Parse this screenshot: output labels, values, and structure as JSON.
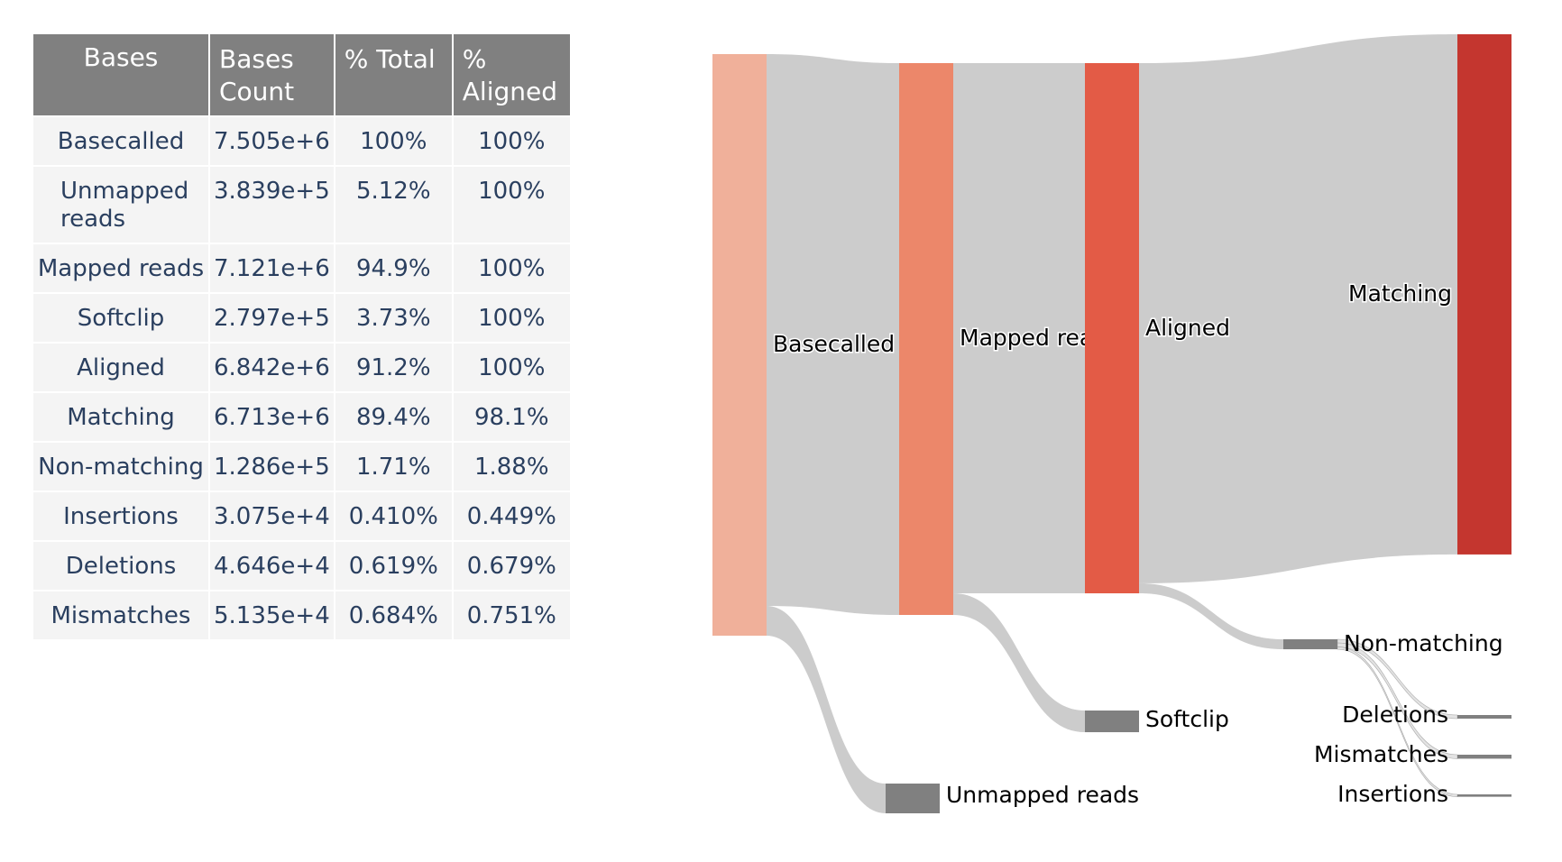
{
  "table": {
    "headers": [
      "Bases",
      "Bases Count",
      "% Total",
      "% Aligned"
    ],
    "rows": [
      [
        "Basecalled",
        "7.505e+6",
        "100%",
        "100%"
      ],
      [
        "Unmapped reads",
        "3.839e+5",
        "5.12%",
        "100%"
      ],
      [
        "Mapped reads",
        "7.121e+6",
        "94.9%",
        "100%"
      ],
      [
        "Softclip",
        "2.797e+5",
        "3.73%",
        "100%"
      ],
      [
        "Aligned",
        "6.842e+6",
        "91.2%",
        "100%"
      ],
      [
        "Matching",
        "6.713e+6",
        "89.4%",
        "98.1%"
      ],
      [
        "Non-matching",
        "1.286e+5",
        "1.71%",
        "1.88%"
      ],
      [
        "Insertions",
        "3.075e+4",
        "0.410%",
        "0.449%"
      ],
      [
        "Deletions",
        "4.646e+4",
        "0.619%",
        "0.679%"
      ],
      [
        "Mismatches",
        "5.135e+4",
        "0.684%",
        "0.751%"
      ]
    ],
    "colors": {
      "header_bg": "#808080",
      "header_text": "#ffffff",
      "cell_bg": "#f4f4f4",
      "cell_text": "#2a3f5f"
    }
  },
  "chart_data": {
    "type": "sankey",
    "nodes": [
      {
        "id": "basecalled",
        "label": "Basecalled",
        "value": 7505000,
        "color": "#f0b09a"
      },
      {
        "id": "mapped",
        "label": "Mapped reads",
        "value": 7121000,
        "color": "#ec876a"
      },
      {
        "id": "unmapped",
        "label": "Unmapped reads",
        "value": 383900,
        "color": "#808080"
      },
      {
        "id": "aligned",
        "label": "Aligned",
        "value": 6842000,
        "color": "#e35b46"
      },
      {
        "id": "softclip",
        "label": "Softclip",
        "value": 279700,
        "color": "#808080"
      },
      {
        "id": "matching",
        "label": "Matching",
        "value": 6713000,
        "color": "#c4362f"
      },
      {
        "id": "nonmatching",
        "label": "Non-matching",
        "value": 128600,
        "color": "#808080"
      },
      {
        "id": "deletions",
        "label": "Deletions",
        "value": 46460,
        "color": "#808080"
      },
      {
        "id": "mismatches",
        "label": "Mismatches",
        "value": 51350,
        "color": "#808080"
      },
      {
        "id": "insertions",
        "label": "Insertions",
        "value": 30750,
        "color": "#808080"
      }
    ],
    "links": [
      {
        "source": "basecalled",
        "target": "mapped",
        "value": 7121000
      },
      {
        "source": "basecalled",
        "target": "unmapped",
        "value": 383900
      },
      {
        "source": "mapped",
        "target": "aligned",
        "value": 6842000
      },
      {
        "source": "mapped",
        "target": "softclip",
        "value": 279700
      },
      {
        "source": "aligned",
        "target": "matching",
        "value": 6713000
      },
      {
        "source": "aligned",
        "target": "nonmatching",
        "value": 128600
      },
      {
        "source": "nonmatching",
        "target": "deletions",
        "value": 46460
      },
      {
        "source": "nonmatching",
        "target": "mismatches",
        "value": 51350
      },
      {
        "source": "nonmatching",
        "target": "insertions",
        "value": 30750
      }
    ],
    "link_color": "#cccccc"
  }
}
